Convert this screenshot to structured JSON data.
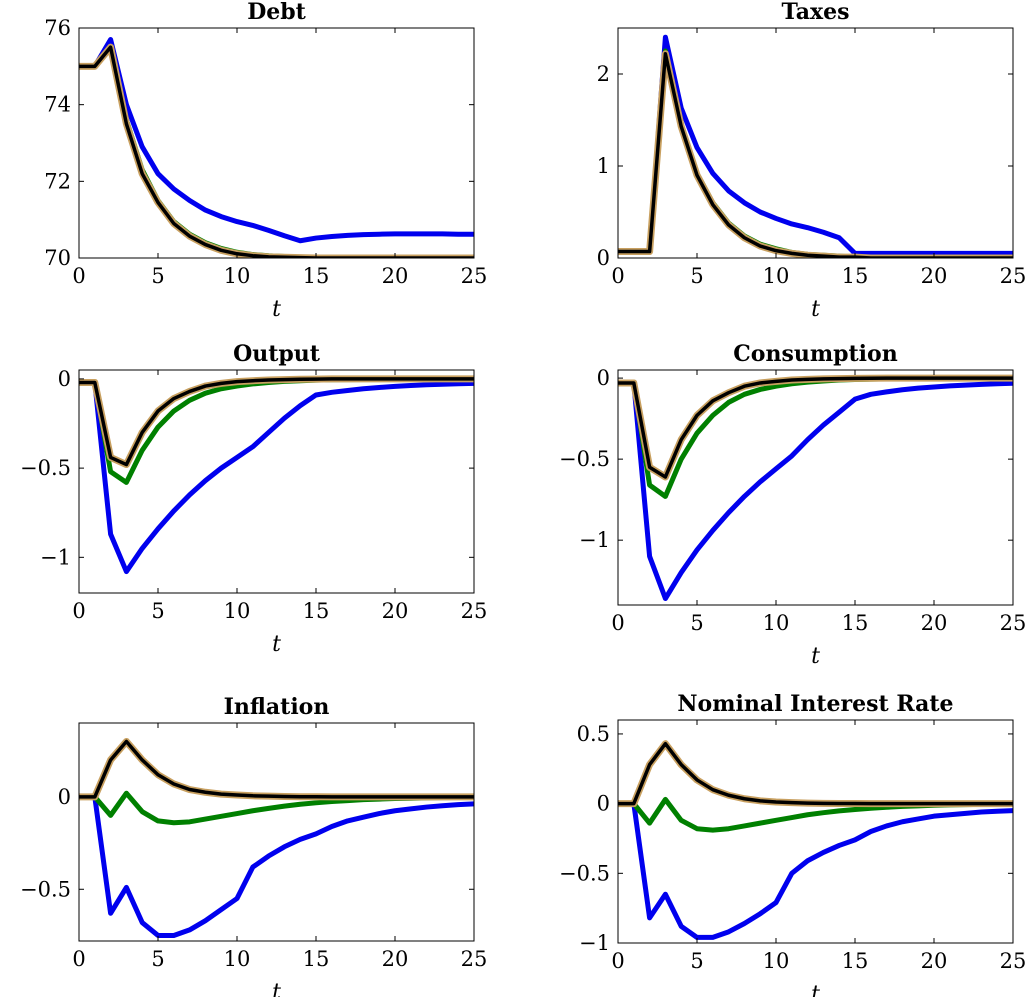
{
  "chart_data": [
    {
      "type": "line",
      "title": "Debt",
      "xlabel": "t",
      "ylabel": "",
      "xlim": [
        0,
        25
      ],
      "ylim": [
        70,
        76
      ],
      "xticks": [
        0,
        5,
        10,
        15,
        20,
        25
      ],
      "yticks": [
        70,
        72,
        74,
        76
      ],
      "ytick_labels": [
        "70",
        "72",
        "74",
        "76"
      ],
      "x": [
        0,
        1,
        2,
        3,
        4,
        5,
        6,
        7,
        8,
        9,
        10,
        11,
        12,
        13,
        14,
        15,
        16,
        17,
        18,
        19,
        20,
        21,
        22,
        23,
        24,
        25
      ],
      "series": [
        {
          "color": "#0000ee",
          "values": [
            75,
            75,
            75.7,
            74,
            72.9,
            72.2,
            71.8,
            71.5,
            71.25,
            71.08,
            70.95,
            70.85,
            70.72,
            70.58,
            70.45,
            70.52,
            70.56,
            70.59,
            70.61,
            70.62,
            70.63,
            70.63,
            70.63,
            70.63,
            70.62,
            70.62
          ]
        },
        {
          "color": "#008000",
          "values": [
            75,
            75,
            75.5,
            73.6,
            72.3,
            71.5,
            70.95,
            70.62,
            70.4,
            70.25,
            70.15,
            70.09,
            70.06,
            70.04,
            70.02,
            70.01,
            70,
            70,
            70,
            70,
            70,
            70,
            70,
            70,
            70,
            70
          ]
        },
        {
          "color": "#000000",
          "outline": "#c8a060",
          "values": [
            75,
            75,
            75.5,
            73.5,
            72.2,
            71.45,
            70.9,
            70.57,
            70.35,
            70.2,
            70.11,
            70.06,
            70.03,
            70.02,
            70.01,
            70,
            70,
            70,
            70,
            70,
            70,
            70,
            70,
            70,
            70,
            70
          ]
        }
      ]
    },
    {
      "type": "line",
      "title": "Taxes",
      "xlabel": "t",
      "ylabel": "",
      "xlim": [
        0,
        25
      ],
      "ylim": [
        0,
        2.5
      ],
      "xticks": [
        0,
        5,
        10,
        15,
        20,
        25
      ],
      "yticks": [
        0,
        1,
        2
      ],
      "ytick_labels": [
        "0",
        "1",
        "2"
      ],
      "x": [
        0,
        1,
        2,
        3,
        4,
        5,
        6,
        7,
        8,
        9,
        10,
        11,
        12,
        13,
        14,
        15,
        16,
        17,
        18,
        19,
        20,
        21,
        22,
        23,
        24,
        25
      ],
      "series": [
        {
          "color": "#0000ee",
          "values": [
            0.07,
            0.07,
            0.07,
            2.4,
            1.63,
            1.2,
            0.92,
            0.73,
            0.6,
            0.5,
            0.43,
            0.37,
            0.33,
            0.28,
            0.22,
            0.05,
            0.05,
            0.05,
            0.05,
            0.05,
            0.05,
            0.05,
            0.05,
            0.05,
            0.05,
            0.05
          ]
        },
        {
          "color": "#008000",
          "values": [
            0.07,
            0.07,
            0.07,
            2.25,
            1.45,
            0.92,
            0.6,
            0.38,
            0.24,
            0.15,
            0.1,
            0.06,
            0.04,
            0.03,
            0.02,
            0.01,
            0,
            0,
            0,
            0,
            0,
            0,
            0,
            0,
            0,
            0
          ]
        },
        {
          "color": "#000000",
          "outline": "#c8a060",
          "values": [
            0.07,
            0.07,
            0.07,
            2.22,
            1.43,
            0.9,
            0.58,
            0.36,
            0.22,
            0.13,
            0.08,
            0.05,
            0.03,
            0.02,
            0.01,
            0.01,
            0,
            0,
            0,
            0,
            0,
            0,
            0,
            0,
            0,
            0
          ]
        }
      ]
    },
    {
      "type": "line",
      "title": "Output",
      "xlabel": "t",
      "ylabel": "",
      "xlim": [
        0,
        25
      ],
      "ylim": [
        -1.2,
        0.05
      ],
      "xticks": [
        0,
        5,
        10,
        15,
        20,
        25
      ],
      "yticks": [
        -1,
        -0.5,
        0
      ],
      "ytick_labels": [
        "−1",
        "−0.5",
        "0"
      ],
      "x": [
        0,
        1,
        2,
        3,
        4,
        5,
        6,
        7,
        8,
        9,
        10,
        11,
        12,
        13,
        14,
        15,
        16,
        17,
        18,
        19,
        20,
        21,
        22,
        23,
        24,
        25
      ],
      "series": [
        {
          "color": "#0000ee",
          "values": [
            -0.02,
            -0.02,
            -0.87,
            -1.08,
            -0.95,
            -0.84,
            -0.74,
            -0.65,
            -0.57,
            -0.5,
            -0.44,
            -0.38,
            -0.3,
            -0.22,
            -0.15,
            -0.09,
            -0.075,
            -0.065,
            -0.055,
            -0.048,
            -0.042,
            -0.037,
            -0.033,
            -0.03,
            -0.027,
            -0.025
          ]
        },
        {
          "color": "#008000",
          "values": [
            -0.02,
            -0.02,
            -0.52,
            -0.58,
            -0.4,
            -0.27,
            -0.18,
            -0.12,
            -0.08,
            -0.055,
            -0.04,
            -0.028,
            -0.02,
            -0.014,
            -0.01,
            -0.007,
            -0.005,
            -0.004,
            -0.003,
            -0.002,
            -0.002,
            -0.001,
            -0.001,
            -0.001,
            -0.001,
            -0.001
          ]
        },
        {
          "color": "#000000",
          "outline": "#c8a060",
          "values": [
            -0.02,
            -0.02,
            -0.44,
            -0.48,
            -0.3,
            -0.18,
            -0.11,
            -0.07,
            -0.04,
            -0.025,
            -0.015,
            -0.01,
            -0.006,
            -0.004,
            -0.002,
            -0.001,
            0,
            0,
            0,
            0,
            0,
            0,
            0,
            0,
            0,
            0
          ]
        }
      ]
    },
    {
      "type": "line",
      "title": "Consumption",
      "xlabel": "t",
      "ylabel": "",
      "xlim": [
        0,
        25
      ],
      "ylim": [
        -1.4,
        0.05
      ],
      "xticks": [
        0,
        5,
        10,
        15,
        20,
        25
      ],
      "yticks": [
        -1,
        -0.5,
        0
      ],
      "ytick_labels": [
        "−1",
        "−0.5",
        "0"
      ],
      "x": [
        0,
        1,
        2,
        3,
        4,
        5,
        6,
        7,
        8,
        9,
        10,
        11,
        12,
        13,
        14,
        15,
        16,
        17,
        18,
        19,
        20,
        21,
        22,
        23,
        24,
        25
      ],
      "series": [
        {
          "color": "#0000ee",
          "values": [
            -0.03,
            -0.03,
            -1.1,
            -1.36,
            -1.2,
            -1.06,
            -0.94,
            -0.83,
            -0.73,
            -0.64,
            -0.56,
            -0.48,
            -0.38,
            -0.29,
            -0.21,
            -0.13,
            -0.1,
            -0.085,
            -0.072,
            -0.062,
            -0.055,
            -0.048,
            -0.043,
            -0.039,
            -0.035,
            -0.032
          ]
        },
        {
          "color": "#008000",
          "values": [
            -0.03,
            -0.03,
            -0.66,
            -0.73,
            -0.5,
            -0.34,
            -0.23,
            -0.15,
            -0.1,
            -0.07,
            -0.05,
            -0.035,
            -0.025,
            -0.018,
            -0.012,
            -0.009,
            -0.006,
            -0.005,
            -0.004,
            -0.003,
            -0.002,
            -0.002,
            -0.001,
            -0.001,
            -0.001,
            -0.001
          ]
        },
        {
          "color": "#000000",
          "outline": "#c8a060",
          "values": [
            -0.03,
            -0.03,
            -0.55,
            -0.61,
            -0.38,
            -0.23,
            -0.14,
            -0.09,
            -0.05,
            -0.03,
            -0.02,
            -0.012,
            -0.008,
            -0.005,
            -0.003,
            -0.002,
            -0.001,
            0,
            0,
            0,
            0,
            0,
            0,
            0,
            0,
            0
          ]
        }
      ]
    },
    {
      "type": "line",
      "title": "Inflation",
      "xlabel": "t",
      "ylabel": "",
      "xlim": [
        0,
        25
      ],
      "ylim": [
        -0.78,
        0.4
      ],
      "xticks": [
        0,
        5,
        10,
        15,
        20,
        25
      ],
      "yticks": [
        -0.5,
        0
      ],
      "ytick_labels": [
        "−0.5",
        "0"
      ],
      "x": [
        0,
        1,
        2,
        3,
        4,
        5,
        6,
        7,
        8,
        9,
        10,
        11,
        12,
        13,
        14,
        15,
        16,
        17,
        18,
        19,
        20,
        21,
        22,
        23,
        24,
        25
      ],
      "series": [
        {
          "color": "#0000ee",
          "values": [
            0,
            0,
            -0.63,
            -0.49,
            -0.68,
            -0.75,
            -0.75,
            -0.72,
            -0.67,
            -0.61,
            -0.55,
            -0.38,
            -0.32,
            -0.27,
            -0.23,
            -0.2,
            -0.16,
            -0.13,
            -0.11,
            -0.09,
            -0.075,
            -0.065,
            -0.055,
            -0.048,
            -0.042,
            -0.038
          ]
        },
        {
          "color": "#008000",
          "values": [
            0,
            0,
            -0.1,
            0.02,
            -0.08,
            -0.13,
            -0.14,
            -0.135,
            -0.12,
            -0.105,
            -0.09,
            -0.075,
            -0.062,
            -0.05,
            -0.04,
            -0.032,
            -0.025,
            -0.02,
            -0.015,
            -0.012,
            -0.009,
            -0.007,
            -0.005,
            -0.004,
            -0.003,
            -0.002
          ]
        },
        {
          "color": "#000000",
          "outline": "#c8a060",
          "values": [
            0,
            0,
            0.2,
            0.3,
            0.2,
            0.12,
            0.07,
            0.04,
            0.025,
            0.015,
            0.01,
            0.006,
            0.004,
            0.002,
            0.001,
            0.001,
            0,
            0,
            0,
            0,
            0,
            0,
            0,
            0,
            0,
            0
          ]
        }
      ]
    },
    {
      "type": "line",
      "title": "Nominal Interest Rate",
      "xlabel": "t",
      "ylabel": "",
      "xlim": [
        0,
        25
      ],
      "ylim": [
        -1,
        0.6
      ],
      "xticks": [
        0,
        5,
        10,
        15,
        20,
        25
      ],
      "yticks": [
        -1,
        -0.5,
        0,
        0.5
      ],
      "ytick_labels": [
        "−1",
        "−0.5",
        "0",
        "0.5"
      ],
      "x": [
        0,
        1,
        2,
        3,
        4,
        5,
        6,
        7,
        8,
        9,
        10,
        11,
        12,
        13,
        14,
        15,
        16,
        17,
        18,
        19,
        20,
        21,
        22,
        23,
        24,
        25
      ],
      "series": [
        {
          "color": "#0000ee",
          "values": [
            0,
            0,
            -0.82,
            -0.65,
            -0.88,
            -0.96,
            -0.96,
            -0.92,
            -0.86,
            -0.79,
            -0.71,
            -0.5,
            -0.41,
            -0.35,
            -0.3,
            -0.26,
            -0.2,
            -0.16,
            -0.13,
            -0.11,
            -0.09,
            -0.08,
            -0.07,
            -0.06,
            -0.055,
            -0.05
          ]
        },
        {
          "color": "#008000",
          "values": [
            0,
            0,
            -0.14,
            0.03,
            -0.12,
            -0.18,
            -0.19,
            -0.18,
            -0.16,
            -0.14,
            -0.12,
            -0.1,
            -0.08,
            -0.065,
            -0.052,
            -0.042,
            -0.033,
            -0.026,
            -0.02,
            -0.016,
            -0.012,
            -0.009,
            -0.007,
            -0.005,
            -0.004,
            -0.003
          ]
        },
        {
          "color": "#000000",
          "outline": "#c8a060",
          "values": [
            0,
            0,
            0.28,
            0.43,
            0.28,
            0.17,
            0.1,
            0.06,
            0.035,
            0.02,
            0.012,
            0.007,
            0.004,
            0.002,
            0.001,
            0.001,
            0,
            0,
            0,
            0,
            0,
            0,
            0,
            0,
            0,
            0
          ]
        }
      ]
    }
  ]
}
